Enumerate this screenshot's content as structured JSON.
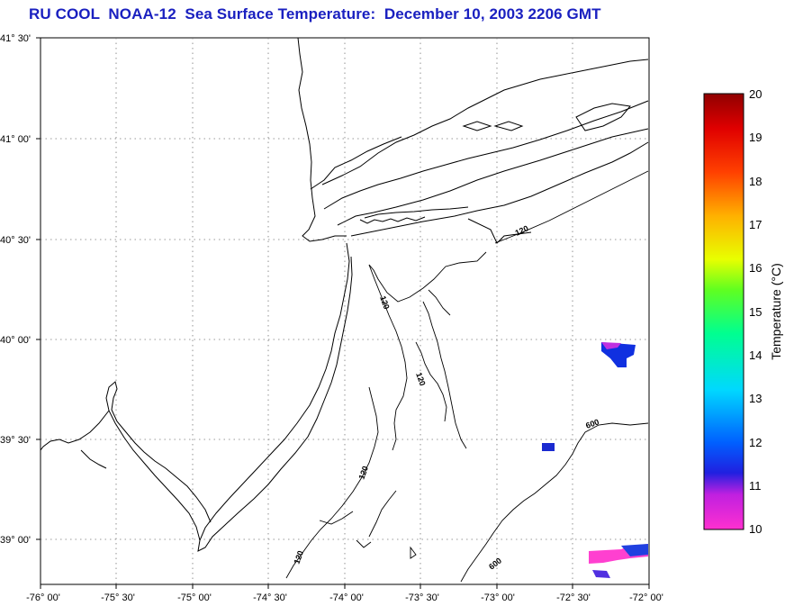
{
  "title": "RU COOL  NOAA-12  Sea Surface Temperature:  December 10, 2003 2206 GMT",
  "map": {
    "lat_labels": [
      "41° 30'",
      "41° 00'",
      "40° 30'",
      "40° 00'",
      "39° 30'",
      "39° 00'"
    ],
    "lon_labels": [
      "-76° 00'",
      "-75° 30'",
      "-75° 00'",
      "-74° 30'",
      "-74° 00'",
      "-73° 30'",
      "-73° 00'",
      "-72° 30'",
      "-72° 00'"
    ],
    "lat_range": [
      38.75,
      41.5
    ],
    "lon_range": [
      -76.0,
      -72.0
    ],
    "grid": "dotted",
    "contour_labels": [
      "120",
      "120",
      "120",
      "120",
      "120",
      "600",
      "600"
    ],
    "sst_patches": [
      {
        "region": "east 40N",
        "color": "#1030e0"
      },
      {
        "region": "east 39.5N",
        "color": "#1a2ad0"
      },
      {
        "region": "southeast corner",
        "color": "#ff40d0"
      }
    ]
  },
  "colorbar": {
    "title": "Temperature (°C)",
    "min": 10,
    "max": 20,
    "ticks": [
      "20",
      "19",
      "18",
      "17",
      "16",
      "15",
      "14",
      "13",
      "12",
      "11",
      "10"
    ],
    "colors": [
      "#ff30d0",
      "#b020e0",
      "#2020e0",
      "#0070ff",
      "#00d0ff",
      "#00ff90",
      "#40ff20",
      "#e0ff00",
      "#ffb000",
      "#ff3000",
      "#b00000"
    ]
  }
}
